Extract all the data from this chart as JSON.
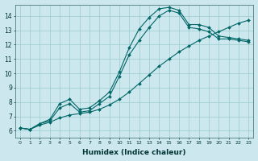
{
  "xlabel": "Humidex (Indice chaleur)",
  "background_color": "#cce8ee",
  "grid_color": "#99cccc",
  "line_color": "#006666",
  "xlim": [
    -0.5,
    23.5
  ],
  "ylim": [
    5.5,
    14.8
  ],
  "x_ticks": [
    0,
    1,
    2,
    3,
    4,
    5,
    6,
    7,
    8,
    9,
    10,
    11,
    12,
    13,
    14,
    15,
    16,
    17,
    18,
    19,
    20,
    21,
    22,
    23
  ],
  "y_ticks": [
    6,
    7,
    8,
    9,
    10,
    11,
    12,
    13,
    14
  ],
  "line1_x": [
    0,
    1,
    2,
    3,
    4,
    5,
    6,
    7,
    8,
    9,
    10,
    11,
    12,
    13,
    14,
    15,
    16,
    17,
    18,
    19,
    20,
    21,
    22,
    23
  ],
  "line1_y": [
    6.2,
    6.1,
    6.5,
    6.8,
    7.9,
    8.2,
    7.5,
    7.6,
    8.1,
    8.7,
    10.1,
    11.8,
    13.1,
    13.9,
    14.5,
    14.6,
    14.4,
    13.4,
    13.4,
    13.2,
    12.6,
    12.5,
    12.4,
    12.3
  ],
  "line2_x": [
    0,
    1,
    2,
    3,
    4,
    5,
    6,
    7,
    8,
    9,
    10,
    11,
    12,
    13,
    14,
    15,
    16,
    17,
    18,
    19,
    20,
    21,
    22,
    23
  ],
  "line2_y": [
    6.2,
    6.1,
    6.5,
    6.7,
    7.6,
    7.9,
    7.3,
    7.4,
    7.9,
    8.4,
    9.8,
    11.3,
    12.3,
    13.2,
    14.0,
    14.4,
    14.2,
    13.2,
    13.1,
    12.9,
    12.4,
    12.4,
    12.3,
    12.2
  ],
  "line3_x": [
    0,
    1,
    2,
    3,
    4,
    5,
    6,
    7,
    8,
    9,
    10,
    11,
    12,
    13,
    14,
    15,
    16,
    17,
    18,
    19,
    20,
    21,
    22,
    23
  ],
  "line3_y": [
    6.2,
    6.1,
    6.4,
    6.6,
    6.9,
    7.1,
    7.2,
    7.3,
    7.5,
    7.8,
    8.2,
    8.7,
    9.3,
    9.9,
    10.5,
    11.0,
    11.5,
    11.9,
    12.3,
    12.6,
    12.9,
    13.2,
    13.5,
    13.7
  ]
}
